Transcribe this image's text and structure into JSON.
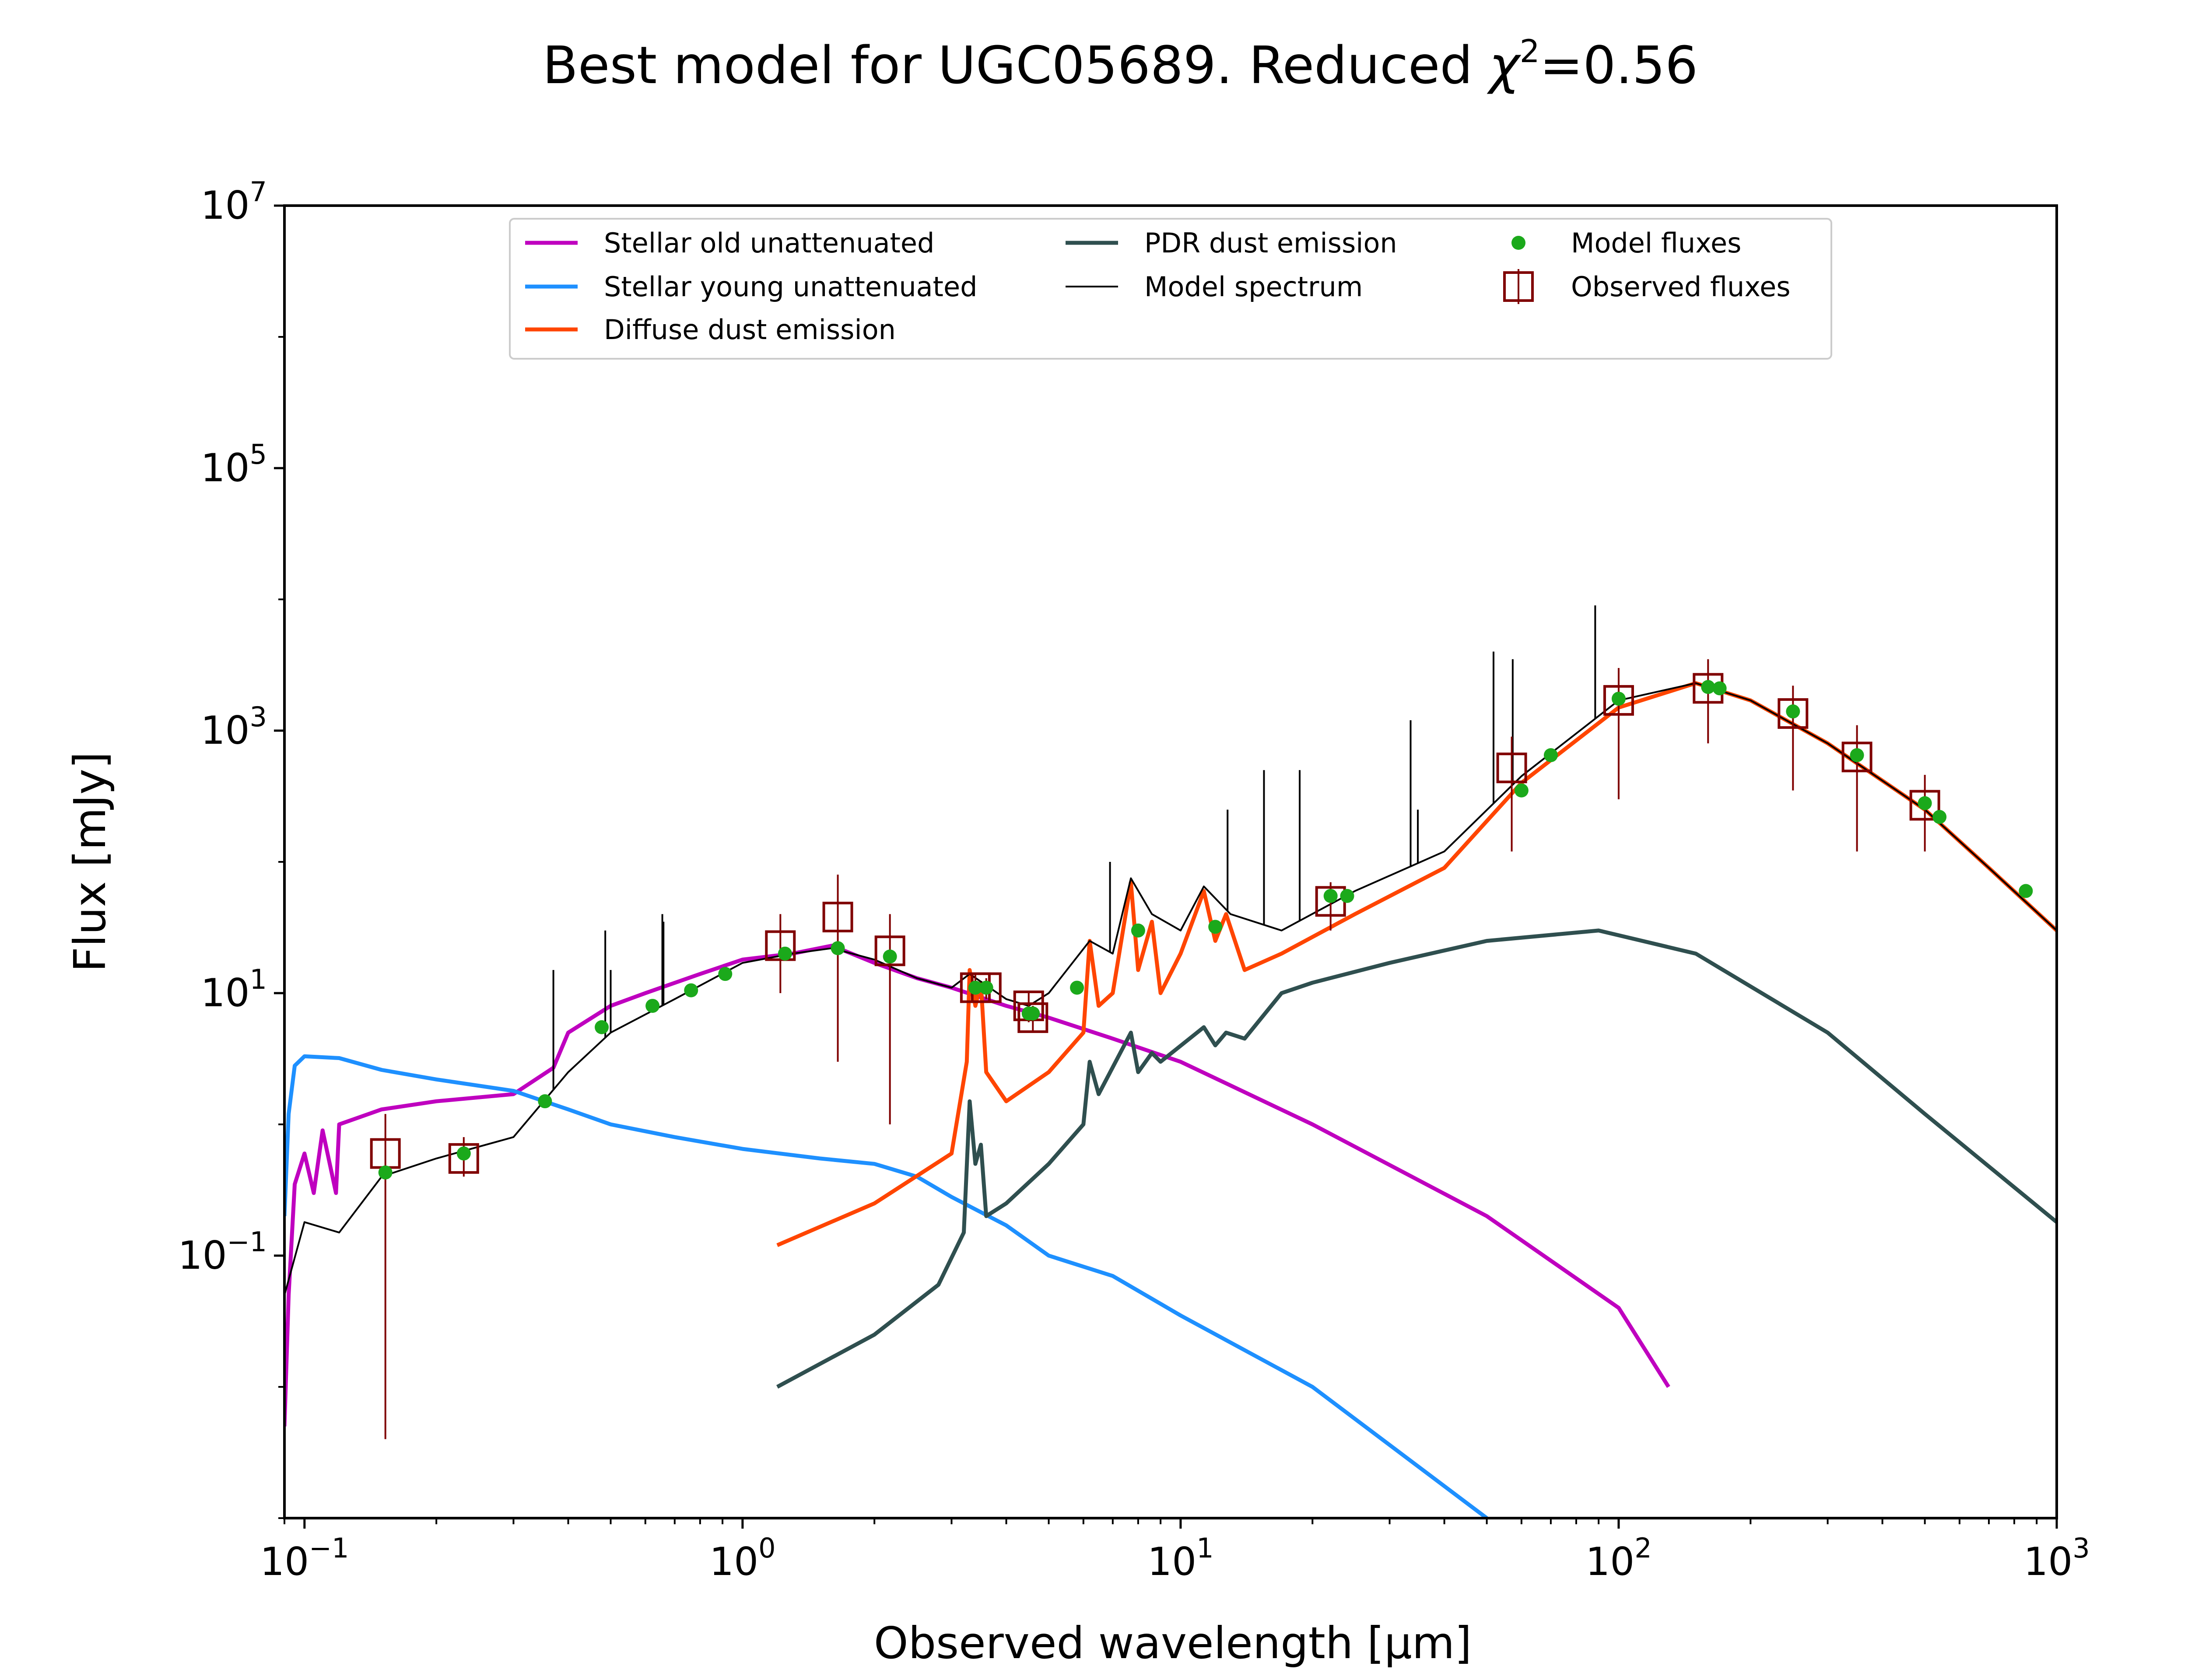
{
  "chart_data": {
    "type": "line",
    "title": "Best model for UGC05689. Reduced χ²=0.56",
    "title_main": "Best model for UGC05689. Reduced ",
    "title_chi": "χ",
    "title_exp": "2",
    "title_value": "=0.56",
    "xlabel": "Observed wavelength [μm]",
    "ylabel": "Flux [mJy]",
    "xscale": "log",
    "yscale": "log",
    "xlim": [
      0.09,
      1000
    ],
    "ylim": [
      0.001,
      10000000
    ],
    "x_ticks": [
      {
        "value": 0.1,
        "base": "10",
        "exp": "−1"
      },
      {
        "value": 1,
        "base": "10",
        "exp": "0"
      },
      {
        "value": 10,
        "base": "10",
        "exp": "1"
      },
      {
        "value": 100,
        "base": "10",
        "exp": "2"
      },
      {
        "value": 1000,
        "base": "10",
        "exp": "3"
      }
    ],
    "y_ticks": [
      {
        "value": 0.1,
        "base": "10",
        "exp": "−1"
      },
      {
        "value": 10,
        "base": "10",
        "exp": "1"
      },
      {
        "value": 1000,
        "base": "10",
        "exp": "3"
      },
      {
        "value": 100000,
        "base": "10",
        "exp": "5"
      },
      {
        "value": 10000000,
        "base": "10",
        "exp": "7"
      }
    ],
    "grid": false,
    "legend_position": "top-center",
    "series": [
      {
        "name": "Stellar old unattenuated",
        "color": "#BF00BF",
        "kind": "line",
        "points": [
          [
            0.09,
            0.005
          ],
          [
            0.092,
            0.05
          ],
          [
            0.095,
            0.35
          ],
          [
            0.1,
            0.6
          ],
          [
            0.105,
            0.3
          ],
          [
            0.11,
            0.9
          ],
          [
            0.118,
            0.3
          ],
          [
            0.12,
            1.0
          ],
          [
            0.15,
            1.3
          ],
          [
            0.2,
            1.5
          ],
          [
            0.3,
            1.7
          ],
          [
            0.37,
            2.7
          ],
          [
            0.4,
            5
          ],
          [
            0.5,
            8
          ],
          [
            0.6,
            10
          ],
          [
            0.8,
            14
          ],
          [
            1.0,
            18
          ],
          [
            1.3,
            20
          ],
          [
            1.6,
            23
          ],
          [
            2.0,
            17
          ],
          [
            2.5,
            13
          ],
          [
            3.0,
            11
          ],
          [
            4.0,
            8
          ],
          [
            5.0,
            6.5
          ],
          [
            7.0,
            4.5
          ],
          [
            10.0,
            3
          ],
          [
            20.0,
            1.0
          ],
          [
            50.0,
            0.2
          ],
          [
            100.0,
            0.04
          ],
          [
            130.0,
            0.01
          ]
        ]
      },
      {
        "name": "Stellar young unattenuated",
        "color": "#1E90FF",
        "kind": "line",
        "points": [
          [
            0.09,
            0.2
          ],
          [
            0.092,
            1.2
          ],
          [
            0.095,
            2.8
          ],
          [
            0.1,
            3.3
          ],
          [
            0.12,
            3.2
          ],
          [
            0.15,
            2.6
          ],
          [
            0.2,
            2.2
          ],
          [
            0.3,
            1.8
          ],
          [
            0.4,
            1.3
          ],
          [
            0.5,
            1.0
          ],
          [
            0.7,
            0.8
          ],
          [
            1.0,
            0.65
          ],
          [
            1.5,
            0.55
          ],
          [
            2.0,
            0.5
          ],
          [
            2.5,
            0.4
          ],
          [
            3.0,
            0.28
          ],
          [
            4.0,
            0.17
          ],
          [
            5.0,
            0.1
          ],
          [
            7.0,
            0.07
          ],
          [
            10.0,
            0.035
          ],
          [
            20.0,
            0.01
          ],
          [
            50.0,
            0.001
          ]
        ]
      },
      {
        "name": "Diffuse dust emission",
        "color": "#FF4500",
        "kind": "line",
        "points": [
          [
            1.2,
            0.12
          ],
          [
            2.0,
            0.25
          ],
          [
            3.0,
            0.6
          ],
          [
            3.25,
            3
          ],
          [
            3.3,
            15
          ],
          [
            3.4,
            8
          ],
          [
            3.5,
            12
          ],
          [
            3.6,
            2.5
          ],
          [
            4.0,
            1.5
          ],
          [
            5.0,
            2.5
          ],
          [
            6.0,
            5
          ],
          [
            6.2,
            25
          ],
          [
            6.5,
            8
          ],
          [
            7.0,
            10
          ],
          [
            7.7,
            70
          ],
          [
            8.0,
            15
          ],
          [
            8.6,
            35
          ],
          [
            9.0,
            10
          ],
          [
            10.0,
            20
          ],
          [
            11.3,
            60
          ],
          [
            12.0,
            25
          ],
          [
            12.7,
            40
          ],
          [
            14.0,
            15
          ],
          [
            17.0,
            20
          ],
          [
            25.0,
            40
          ],
          [
            40.0,
            90
          ],
          [
            60.0,
            400
          ],
          [
            100.0,
            1500
          ],
          [
            150.0,
            2300
          ],
          [
            200.0,
            1700
          ],
          [
            300.0,
            800
          ],
          [
            500.0,
            250
          ],
          [
            700.0,
            90
          ],
          [
            1000.0,
            30
          ]
        ]
      },
      {
        "name": "PDR dust emission",
        "color": "#2F4F4F",
        "kind": "line",
        "points": [
          [
            1.2,
            0.01
          ],
          [
            2.0,
            0.025
          ],
          [
            2.8,
            0.06
          ],
          [
            3.2,
            0.15
          ],
          [
            3.3,
            1.5
          ],
          [
            3.4,
            0.5
          ],
          [
            3.5,
            0.7
          ],
          [
            3.6,
            0.2
          ],
          [
            4.0,
            0.25
          ],
          [
            5.0,
            0.5
          ],
          [
            6.0,
            1.0
          ],
          [
            6.2,
            3
          ],
          [
            6.5,
            1.7
          ],
          [
            7.7,
            5
          ],
          [
            8.0,
            2.5
          ],
          [
            8.6,
            3.5
          ],
          [
            9.0,
            3
          ],
          [
            11.3,
            5.5
          ],
          [
            12.0,
            4
          ],
          [
            12.7,
            5
          ],
          [
            14.0,
            4.5
          ],
          [
            17.0,
            10
          ],
          [
            20.0,
            12
          ],
          [
            30.0,
            17
          ],
          [
            50.0,
            25
          ],
          [
            90.0,
            30
          ],
          [
            150.0,
            20
          ],
          [
            300.0,
            5
          ],
          [
            500.0,
            1.2
          ],
          [
            1000.0,
            0.18
          ]
        ]
      },
      {
        "name": "Model spectrum",
        "color": "#000000",
        "kind": "line",
        "points": [
          [
            0.09,
            0.05
          ],
          [
            0.1,
            0.18
          ],
          [
            0.12,
            0.15
          ],
          [
            0.15,
            0.4
          ],
          [
            0.2,
            0.55
          ],
          [
            0.3,
            0.8
          ],
          [
            0.4,
            2.5
          ],
          [
            0.5,
            5
          ],
          [
            0.7,
            9
          ],
          [
            1.0,
            17
          ],
          [
            1.3,
            20
          ],
          [
            1.6,
            22
          ],
          [
            2.0,
            18
          ],
          [
            2.5,
            13
          ],
          [
            3.0,
            11
          ],
          [
            3.3,
            14
          ],
          [
            4.0,
            9
          ],
          [
            4.5,
            8
          ],
          [
            5.0,
            10
          ],
          [
            6.2,
            25
          ],
          [
            7.0,
            20
          ],
          [
            7.7,
            75
          ],
          [
            8.6,
            40
          ],
          [
            10.0,
            30
          ],
          [
            11.3,
            65
          ],
          [
            13.0,
            40
          ],
          [
            17.0,
            30
          ],
          [
            25.0,
            60
          ],
          [
            40.0,
            120
          ],
          [
            60.0,
            450
          ],
          [
            100.0,
            1700
          ],
          [
            150.0,
            2300
          ],
          [
            200.0,
            1700
          ],
          [
            300.0,
            800
          ],
          [
            500.0,
            250
          ],
          [
            700.0,
            90
          ],
          [
            1000.0,
            30
          ]
        ],
        "emission_lines": [
          [
            0.37,
            15
          ],
          [
            0.486,
            30
          ],
          [
            0.5,
            15
          ],
          [
            0.656,
            40
          ],
          [
            0.66,
            35
          ],
          [
            6.9,
            100
          ],
          [
            12.8,
            250
          ],
          [
            15.5,
            500
          ],
          [
            18.7,
            500
          ],
          [
            33.5,
            1200
          ],
          [
            34.8,
            250
          ],
          [
            51.8,
            4000
          ],
          [
            57.3,
            3500
          ],
          [
            88.4,
            9000
          ]
        ]
      },
      {
        "name": "Model fluxes",
        "color": "#1BA91B",
        "kind": "points",
        "points": [
          [
            0.153,
            0.43
          ],
          [
            0.231,
            0.6
          ],
          [
            0.354,
            1.5
          ],
          [
            0.477,
            5.5
          ],
          [
            0.623,
            8
          ],
          [
            0.763,
            10.5
          ],
          [
            0.913,
            14
          ],
          [
            1.25,
            20
          ],
          [
            1.65,
            22
          ],
          [
            2.17,
            19
          ],
          [
            3.4,
            11
          ],
          [
            3.6,
            11
          ],
          [
            4.5,
            7
          ],
          [
            4.6,
            7
          ],
          [
            5.8,
            11
          ],
          [
            8.0,
            30
          ],
          [
            12.0,
            32
          ],
          [
            22.0,
            55
          ],
          [
            24.0,
            55
          ],
          [
            60.0,
            350
          ],
          [
            70.0,
            650
          ],
          [
            100.0,
            1750
          ],
          [
            160.0,
            2150
          ],
          [
            170.0,
            2100
          ],
          [
            250.0,
            1400
          ],
          [
            350.0,
            650
          ],
          [
            500.0,
            280
          ],
          [
            540.0,
            220
          ],
          [
            850.0,
            60
          ]
        ]
      },
      {
        "name": "Observed fluxes",
        "color": "#800000",
        "kind": "errorbar",
        "points": [
          [
            0.153,
            0.6,
            0.004,
            1.2
          ],
          [
            0.231,
            0.55,
            0.4,
            0.8
          ],
          [
            1.22,
            23,
            10,
            40
          ],
          [
            1.65,
            38,
            3,
            80
          ],
          [
            2.17,
            21,
            1,
            40
          ],
          [
            3.4,
            11,
            10,
            14
          ],
          [
            3.6,
            11,
            9,
            13
          ],
          [
            4.5,
            8,
            6,
            10
          ],
          [
            4.6,
            6.5,
            5,
            8
          ],
          [
            22.0,
            50,
            30,
            70
          ],
          [
            57.0,
            520,
            120,
            900
          ],
          [
            100.0,
            1700,
            300,
            3000
          ],
          [
            160.0,
            2100,
            800,
            3500
          ],
          [
            250.0,
            1350,
            350,
            2200
          ],
          [
            350.0,
            630,
            120,
            1100
          ],
          [
            500.0,
            270,
            120,
            460
          ]
        ]
      }
    ]
  }
}
